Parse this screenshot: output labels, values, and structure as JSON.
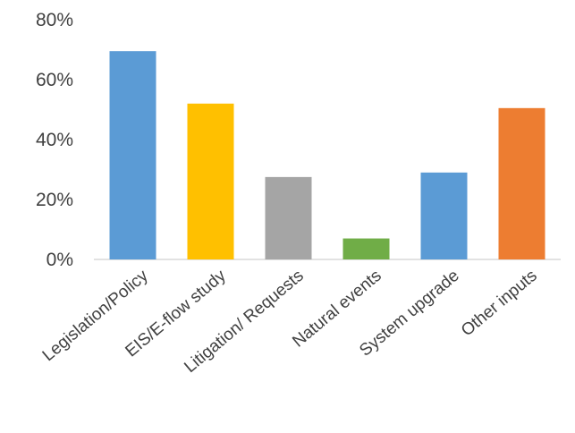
{
  "chart_data": {
    "type": "bar",
    "title": "",
    "xlabel": "",
    "ylabel": "",
    "categories": [
      "Legislation/Policy",
      "EIS/E-flow study",
      "Litigation/ Requests",
      "Natural events",
      "System upgrade",
      "Other inputs"
    ],
    "values": [
      69.5,
      52,
      27.5,
      7,
      29,
      50.5
    ],
    "colors": [
      "#5b9bd5",
      "#ffc000",
      "#a5a5a5",
      "#70ad47",
      "#5b9bd5",
      "#ed7d31"
    ],
    "ylim": [
      0,
      80
    ],
    "yticks": [
      0,
      20,
      40,
      60,
      80
    ],
    "ytick_labels": [
      "0%",
      "20%",
      "40%",
      "60%",
      "80%"
    ],
    "grid": false,
    "legend": "none",
    "axis_color": "#d9d9d9"
  }
}
